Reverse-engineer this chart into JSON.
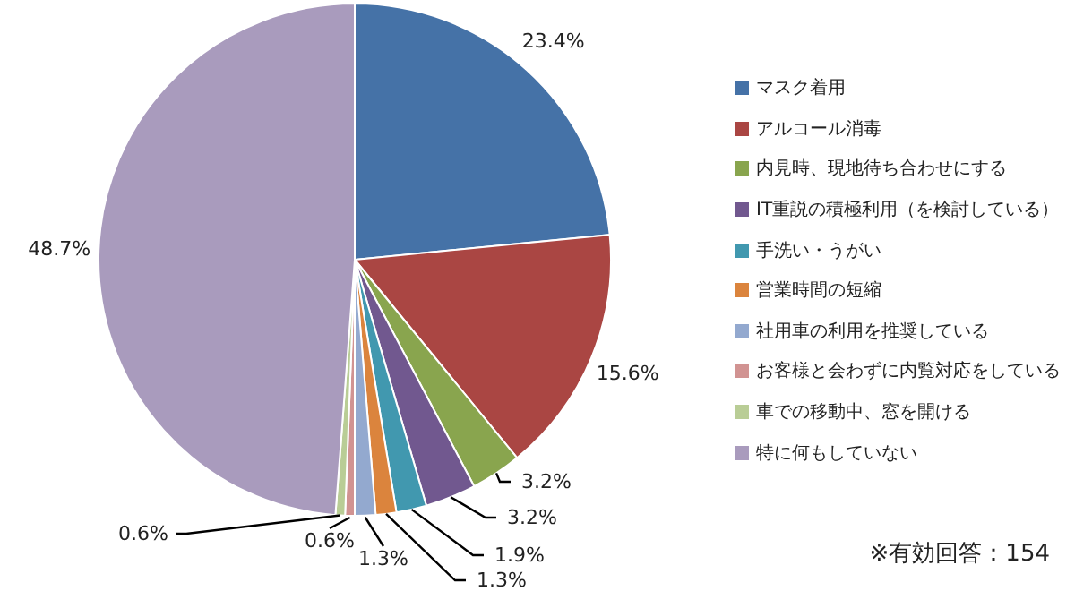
{
  "chart_data": {
    "type": "pie",
    "categories": [
      "マスク着用",
      "アルコール消毒",
      "内見時、現地待ち合わせにする",
      "IT重説の積極利用（を検討している）",
      "手洗い・うがい",
      "営業時間の短縮",
      "社用車の利用を推奨している",
      "お客様と会わずに内覧対応をしている",
      "車での移動中、窓を開ける",
      "特に何もしていない"
    ],
    "values": [
      23.4,
      15.6,
      3.2,
      3.2,
      1.9,
      1.3,
      1.3,
      0.6,
      0.6,
      48.7
    ],
    "value_labels": [
      "23.4%",
      "15.6%",
      "3.2%",
      "3.2%",
      "1.9%",
      "1.3%",
      "1.3%",
      "0.6%",
      "0.6%",
      "48.7%"
    ],
    "colors": [
      "#4572a7",
      "#aa4643",
      "#89a54e",
      "#71588f",
      "#4198af",
      "#db843d",
      "#93a9cf",
      "#d19392",
      "#b9cd96",
      "#a99bbd"
    ],
    "legend": "right",
    "annotations": [
      "※有効回答：154"
    ]
  }
}
